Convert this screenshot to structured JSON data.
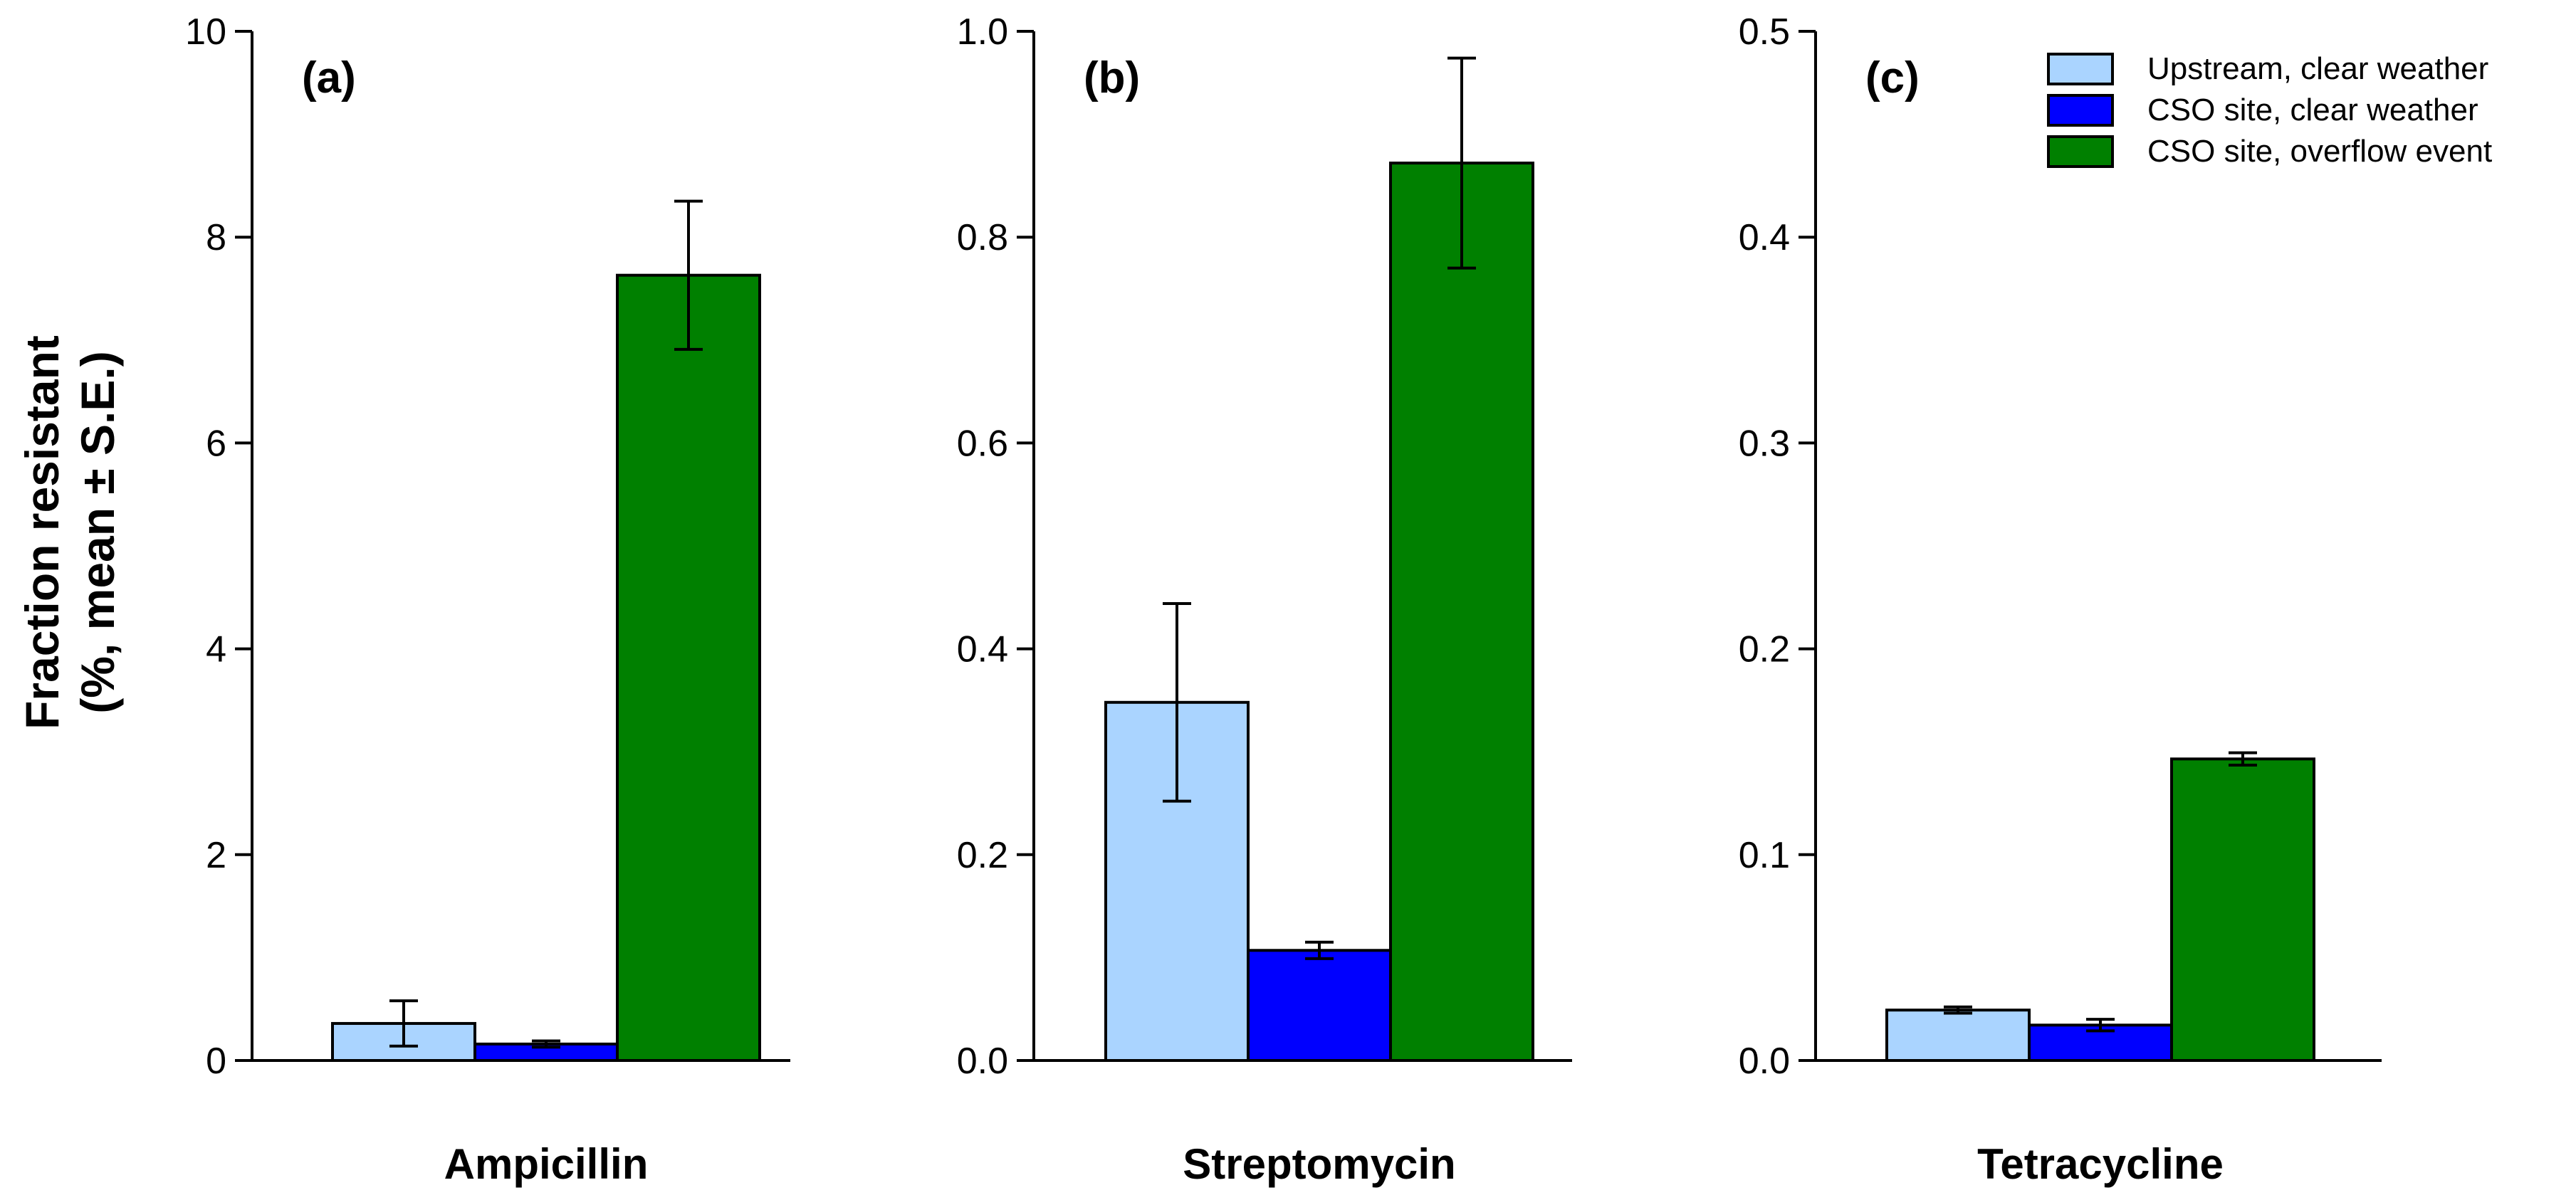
{
  "figure": {
    "ylabel_line1": "Fraction resistant",
    "ylabel_line2": "(%, mean ± S.E.)"
  },
  "legend": [
    {
      "label": "Upstream, clear weather",
      "color": "#aad4ff"
    },
    {
      "label": "CSO site, clear weather",
      "color": "#0000ff"
    },
    {
      "label": "CSO site, overflow event",
      "color": "#008000"
    }
  ],
  "chart_data": [
    {
      "type": "bar",
      "panel": "(a)",
      "xlabel": "Ampicillin",
      "ylim": [
        0,
        10
      ],
      "yticks": [
        "0",
        "2",
        "4",
        "6",
        "8",
        "10"
      ],
      "series": [
        {
          "name": "Upstream, clear weather",
          "value": 0.36,
          "se": 0.22
        },
        {
          "name": "CSO site, clear weather",
          "value": 0.16,
          "se": 0.03
        },
        {
          "name": "CSO site, overflow event",
          "value": 7.63,
          "se": 0.72
        }
      ]
    },
    {
      "type": "bar",
      "panel": "(b)",
      "xlabel": "Streptomycin",
      "ylim": [
        0,
        1.0
      ],
      "yticks": [
        "0.0",
        "0.2",
        "0.4",
        "0.6",
        "0.8",
        "1.0"
      ],
      "series": [
        {
          "name": "Upstream, clear weather",
          "value": 0.348,
          "se": 0.096
        },
        {
          "name": "CSO site, clear weather",
          "value": 0.107,
          "se": 0.008
        },
        {
          "name": "CSO site, overflow event",
          "value": 0.872,
          "se": 0.102
        }
      ]
    },
    {
      "type": "bar",
      "panel": "(c)",
      "xlabel": "Tetracycline",
      "ylim": [
        0,
        0.5
      ],
      "yticks": [
        "0.0",
        "0.1",
        "0.2",
        "0.3",
        "0.4",
        "0.5"
      ],
      "series": [
        {
          "name": "Upstream, clear weather",
          "value": 0.0245,
          "se": 0.0015
        },
        {
          "name": "CSO site, clear weather",
          "value": 0.0172,
          "se": 0.0028
        },
        {
          "name": "CSO site, overflow event",
          "value": 0.1465,
          "se": 0.003
        }
      ]
    }
  ]
}
